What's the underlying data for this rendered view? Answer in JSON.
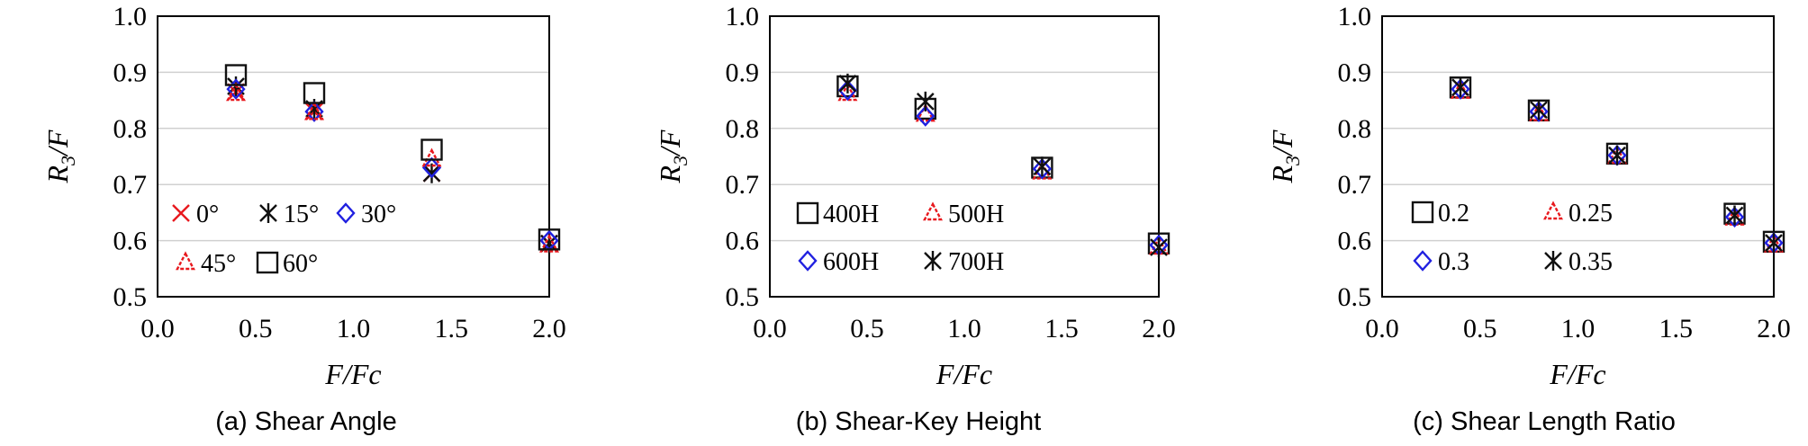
{
  "colors": {
    "red": "#e8191e",
    "black": "#111111",
    "blue": "#2020e0",
    "grid": "#d0d0d0"
  },
  "chart_data": [
    {
      "type": "scatter",
      "caption": "(a) Shear Angle",
      "xlabel": "F/Fc",
      "ylabel_main": "R",
      "ylabel_sub": "3",
      "ylabel_tail": "/F",
      "xlim": [
        0,
        2
      ],
      "ylim": [
        0.5,
        1.0
      ],
      "xticks": [
        "0.0",
        "0.5",
        "1.0",
        "1.5",
        "2.0"
      ],
      "yticks": [
        "0.5",
        "0.6",
        "0.7",
        "0.8",
        "0.9",
        "1.0"
      ],
      "grid": "horizontal",
      "series": [
        {
          "name": "0°",
          "marker": "x",
          "color": "#e8191e",
          "x": [
            0.4,
            0.8,
            1.4,
            2.0
          ],
          "y": [
            0.865,
            0.83,
            0.72,
            0.595
          ]
        },
        {
          "name": "15°",
          "marker": "asterisk",
          "color": "#111111",
          "x": [
            0.4,
            0.8,
            1.4,
            2.0
          ],
          "y": [
            0.875,
            0.835,
            0.72,
            0.595
          ]
        },
        {
          "name": "30°",
          "marker": "diamond",
          "color": "#2020e0",
          "x": [
            0.4,
            0.8,
            1.4,
            2.0
          ],
          "y": [
            0.87,
            0.83,
            0.73,
            0.6
          ]
        },
        {
          "name": "45°",
          "marker": "triangle",
          "color": "#e8191e",
          "x": [
            0.4,
            0.8,
            1.4,
            2.0
          ],
          "y": [
            0.862,
            0.828,
            0.745,
            0.592
          ]
        },
        {
          "name": "60°",
          "marker": "square",
          "color": "#111111",
          "x": [
            0.4,
            0.8,
            1.4,
            2.0
          ],
          "y": [
            0.895,
            0.863,
            0.762,
            0.602
          ]
        }
      ],
      "legend_rows": [
        [
          "0°",
          "15°",
          "30°"
        ],
        [
          "45°",
          "60°"
        ]
      ]
    },
    {
      "type": "scatter",
      "caption": "(b) Shear-Key Height",
      "xlabel": "F/Fc",
      "ylabel_main": "R",
      "ylabel_sub": "3",
      "ylabel_tail": "/F",
      "xlim": [
        0,
        2
      ],
      "ylim": [
        0.5,
        1.0
      ],
      "xticks": [
        "0.0",
        "0.5",
        "1.0",
        "1.5",
        "2.0"
      ],
      "yticks": [
        "0.5",
        "0.6",
        "0.7",
        "0.8",
        "0.9",
        "1.0"
      ],
      "grid": "horizontal",
      "series": [
        {
          "name": "400H",
          "marker": "square",
          "color": "#111111",
          "x": [
            0.4,
            0.8,
            1.4,
            2.0
          ],
          "y": [
            0.875,
            0.835,
            0.73,
            0.595
          ]
        },
        {
          "name": "500H",
          "marker": "triangle",
          "color": "#e8191e",
          "x": [
            0.4,
            0.8,
            1.4,
            2.0
          ],
          "y": [
            0.862,
            0.825,
            0.722,
            0.588
          ]
        },
        {
          "name": "600H",
          "marker": "diamond",
          "color": "#2020e0",
          "x": [
            0.4,
            0.8,
            1.4,
            2.0
          ],
          "y": [
            0.868,
            0.822,
            0.728,
            0.592
          ]
        },
        {
          "name": "700H",
          "marker": "asterisk",
          "color": "#111111",
          "x": [
            0.4,
            0.8,
            1.4,
            2.0
          ],
          "y": [
            0.88,
            0.848,
            0.732,
            0.588
          ]
        }
      ],
      "legend_rows": [
        [
          "400H",
          "500H"
        ],
        [
          "600H",
          "700H"
        ]
      ]
    },
    {
      "type": "scatter",
      "caption": "(c) Shear Length Ratio",
      "xlabel": "F/Fc",
      "ylabel_main": "R",
      "ylabel_sub": "3",
      "ylabel_tail": "/F",
      "xlim": [
        0,
        2
      ],
      "ylim": [
        0.5,
        1.0
      ],
      "xticks": [
        "0.0",
        "0.5",
        "1.0",
        "1.5",
        "2.0"
      ],
      "yticks": [
        "0.5",
        "0.6",
        "0.7",
        "0.8",
        "0.9",
        "1.0"
      ],
      "grid": "horizontal",
      "series": [
        {
          "name": "0.2",
          "marker": "square",
          "color": "#111111",
          "x": [
            0.4,
            0.8,
            1.2,
            1.8,
            2.0
          ],
          "y": [
            0.873,
            0.832,
            0.755,
            0.648,
            0.598
          ]
        },
        {
          "name": "0.25",
          "marker": "triangle",
          "color": "#e8191e",
          "x": [
            0.4,
            0.8,
            1.2,
            1.8,
            2.0
          ],
          "y": [
            0.866,
            0.826,
            0.75,
            0.64,
            0.592
          ]
        },
        {
          "name": "0.3",
          "marker": "diamond",
          "color": "#2020e0",
          "x": [
            0.4,
            0.8,
            1.2,
            1.8,
            2.0
          ],
          "y": [
            0.87,
            0.83,
            0.752,
            0.642,
            0.596
          ]
        },
        {
          "name": "0.35",
          "marker": "asterisk",
          "color": "#111111",
          "x": [
            0.4,
            0.8,
            1.2,
            1.8,
            2.0
          ],
          "y": [
            0.873,
            0.833,
            0.752,
            0.645,
            0.596
          ]
        }
      ],
      "legend_rows": [
        [
          "0.2",
          "0.25"
        ],
        [
          "0.3",
          "0.35"
        ]
      ]
    }
  ]
}
